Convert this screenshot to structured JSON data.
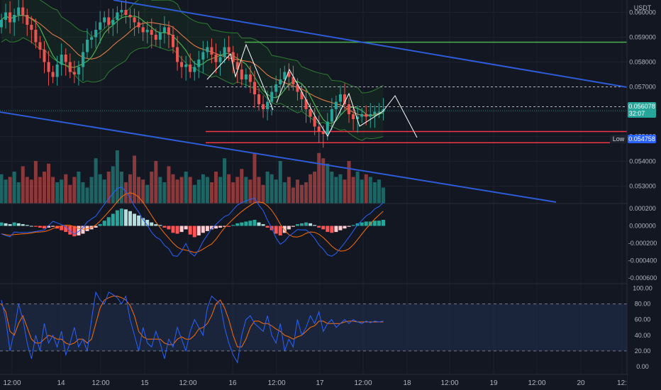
{
  "currency_label": "USDT",
  "price_axis": {
    "labels": [
      "0.060000",
      "0.059000",
      "0.058000",
      "0.057000",
      "0.056000",
      "0.055000",
      "0.054000",
      "0.053000"
    ]
  },
  "last_price": {
    "value": "0.056078",
    "countdown": "32:07",
    "color": "#26a69a"
  },
  "low_marker": {
    "label": "Low",
    "value": "0.054758",
    "color": "#2962ff"
  },
  "macd_axis": {
    "labels": [
      "0.000200",
      "0.000000",
      "-0.000200",
      "-0.000400",
      "-0.000600"
    ]
  },
  "stoch_axis": {
    "labels": [
      "100.00",
      "80.00",
      "60.00",
      "40.00",
      "20.00",
      "0.00"
    ]
  },
  "time_axis": {
    "labels": [
      "12:00",
      "14",
      "12:00",
      "15",
      "12:00",
      "16",
      "12:00",
      "17",
      "12:00",
      "18",
      "12:00",
      "19",
      "12:00",
      "20",
      "12:"
    ]
  },
  "colors": {
    "background": "#131722",
    "up": "#26a69a",
    "down": "#ef5350",
    "trendline": "#2e5bd6",
    "resistance": "#4caf50",
    "support": "#f23645",
    "macd_line": "#2962ff",
    "signal_line": "#ff6d00",
    "stoch_band": "#1e2b44"
  },
  "chart_data": [
    {
      "type": "candlestick",
      "pane": "price",
      "y_scale": [
        0.0523,
        0.0605
      ],
      "levels": {
        "resistance": 0.0588,
        "dashed_upper": 0.057,
        "dashed_mid": 0.0562,
        "support_upper": 0.0552,
        "support_lower": 0.05475
      },
      "closes": [
        0.0597,
        0.06,
        0.0596,
        0.0599,
        0.0602,
        0.0599,
        0.0595,
        0.0593,
        0.0588,
        0.0585,
        0.058,
        0.0576,
        0.0574,
        0.0579,
        0.0583,
        0.058,
        0.0576,
        0.0575,
        0.0578,
        0.0584,
        0.0589,
        0.059,
        0.0593,
        0.0596,
        0.0598,
        0.0595,
        0.0597,
        0.06,
        0.0601,
        0.0599,
        0.0598,
        0.0596,
        0.0594,
        0.0592,
        0.0593,
        0.0591,
        0.0589,
        0.0592,
        0.0594,
        0.0591,
        0.0586,
        0.058,
        0.0578,
        0.0579,
        0.0576,
        0.0578,
        0.0581,
        0.0584,
        0.0586,
        0.0583,
        0.058,
        0.0582,
        0.0586,
        0.0584,
        0.058,
        0.0577,
        0.0573,
        0.0575,
        0.0572,
        0.0567,
        0.0563,
        0.0561,
        0.0564,
        0.0568,
        0.0571,
        0.0573,
        0.0576,
        0.0574,
        0.0571,
        0.0568,
        0.0565,
        0.0561,
        0.0558,
        0.0554,
        0.0552,
        0.0551,
        0.0556,
        0.0561,
        0.0564,
        0.0567,
        0.0563,
        0.0559,
        0.0557,
        0.0558,
        0.0559,
        0.0558,
        0.0559,
        0.056,
        0.056,
        0.0561
      ]
    },
    {
      "type": "bar",
      "pane": "volume",
      "values": [
        0.55,
        0.45,
        0.5,
        0.6,
        0.4,
        0.7,
        0.5,
        0.45,
        0.8,
        0.5,
        0.6,
        0.75,
        0.5,
        0.4,
        0.45,
        0.55,
        0.35,
        0.5,
        0.6,
        0.4,
        0.3,
        0.5,
        0.85,
        0.55,
        0.45,
        0.6,
        0.7,
        1.0,
        0.6,
        0.4,
        0.55,
        0.9,
        0.5,
        0.45,
        0.35,
        0.6,
        0.8,
        0.5,
        0.4,
        0.7,
        0.55,
        0.45,
        0.5,
        0.6,
        0.5,
        0.35,
        0.45,
        0.55,
        0.5,
        0.4,
        0.6,
        0.5,
        0.85,
        0.55,
        0.4,
        0.5,
        0.65,
        0.5,
        0.45,
        0.95,
        0.5,
        0.35,
        0.6,
        0.55,
        0.45,
        0.8,
        0.4,
        0.5,
        0.3,
        0.45,
        0.35,
        0.4,
        0.55,
        0.6,
        0.95,
        0.85,
        0.75,
        0.6,
        0.5,
        0.55,
        0.45,
        0.8,
        0.5,
        0.6,
        0.45,
        0.55,
        0.5,
        0.4,
        0.45,
        0.3
      ]
    },
    {
      "type": "histogram",
      "pane": "macd",
      "y_scale": [
        -0.00065,
        0.00025
      ],
      "values": [
        4e-05,
        3e-05,
        2e-05,
        4e-05,
        3e-05,
        2e-05,
        1e-05,
        0.0,
        -1e-05,
        -2e-05,
        -3e-05,
        -2e-05,
        -1e-05,
        -3e-05,
        -5e-05,
        -7e-05,
        -0.0001,
        -0.00012,
        -0.00011,
        -9e-05,
        -6e-05,
        -4e-05,
        -2e-05,
        2e-05,
        6e-05,
        0.0001,
        0.00014,
        0.00018,
        0.0002,
        0.00019,
        0.00017,
        0.00014,
        0.00012,
        9e-05,
        7e-05,
        4e-05,
        2e-05,
        1e-05,
        -2e-05,
        -4e-05,
        -8e-05,
        -9e-05,
        -7e-05,
        -4e-05,
        -0.0001,
        -0.00013,
        -0.00011,
        -8e-05,
        -6e-05,
        -4e-05,
        -3e-05,
        -2e-05,
        -1e-05,
        -1e-05,
        1e-05,
        3e-05,
        4e-05,
        5e-05,
        6e-05,
        7e-05,
        4e-05,
        2e-05,
        -2e-05,
        -5e-05,
        -9e-05,
        -0.00011,
        -8e-05,
        -4e-05,
        -1e-05,
        2e-05,
        3e-05,
        4e-05,
        3e-05,
        1e-05,
        -2e-05,
        -4e-05,
        -7e-05,
        -8e-05,
        -7e-05,
        -5e-05,
        -3e-05,
        -1e-05,
        1e-05,
        3e-05,
        4e-05,
        5e-05,
        5e-05,
        6e-05,
        6e-05,
        7e-05
      ]
    },
    {
      "type": "line",
      "pane": "stochastic",
      "y_scale": [
        -10,
        105
      ],
      "bands": [
        20,
        80
      ],
      "k_values": [
        85,
        60,
        20,
        45,
        80,
        60,
        30,
        10,
        40,
        20,
        55,
        30,
        40,
        25,
        45,
        15,
        30,
        50,
        25,
        35,
        20,
        60,
        95,
        85,
        80,
        95,
        92,
        88,
        80,
        90,
        60,
        40,
        20,
        50,
        30,
        25,
        45,
        30,
        10,
        35,
        25,
        50,
        35,
        20,
        45,
        60,
        50,
        40,
        75,
        90,
        85,
        80,
        50,
        30,
        15,
        5,
        40,
        60,
        65,
        55,
        50,
        45,
        65,
        40,
        30,
        55,
        20,
        35,
        25,
        60,
        40,
        50,
        65,
        55,
        70,
        45,
        55,
        60,
        50,
        55,
        60,
        55,
        60,
        57,
        55,
        58,
        56,
        58,
        57,
        58
      ],
      "d_values": [
        80,
        70,
        45,
        40,
        55,
        65,
        50,
        35,
        30,
        30,
        35,
        40,
        38,
        35,
        35,
        30,
        28,
        30,
        35,
        35,
        30,
        35,
        55,
        75,
        85,
        88,
        90,
        90,
        88,
        85,
        78,
        65,
        45,
        38,
        35,
        35,
        35,
        35,
        30,
        28,
        28,
        35,
        38,
        35,
        35,
        40,
        48,
        50,
        55,
        65,
        80,
        85,
        75,
        60,
        40,
        25,
        25,
        35,
        50,
        58,
        58,
        55,
        55,
        52,
        48,
        45,
        40,
        38,
        35,
        38,
        40,
        45,
        50,
        52,
        58,
        58,
        55,
        55,
        55,
        55,
        57,
        58,
        58,
        57,
        57,
        57,
        57,
        57,
        57,
        57
      ]
    }
  ]
}
